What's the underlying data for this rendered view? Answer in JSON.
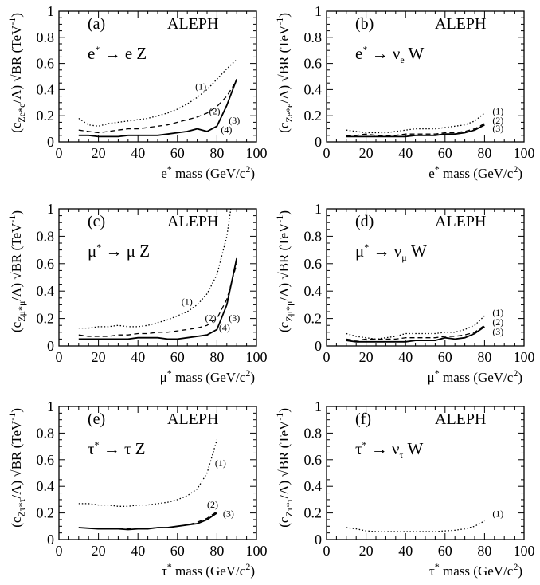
{
  "chart_data": [
    {
      "type": "line",
      "panel_label": "(a)",
      "experiment": "ALEPH",
      "process": {
        "particle": "e",
        "arrow": "→",
        "products": "e Z"
      },
      "xlabel": {
        "pre": "e",
        "post": " mass (GeV/c",
        "post2": ")"
      },
      "ylabel": {
        "c": "(c",
        "sub": "Ze*e",
        "rest": "/Λ) √BR (TeV",
        "sup": "-1",
        "end": ")"
      },
      "xlim": [
        0,
        100
      ],
      "ylim": [
        0,
        1
      ],
      "xticks": [
        "0",
        "20",
        "40",
        "60",
        "80",
        "100"
      ],
      "yticks": [
        "0",
        "0.2",
        "0.4",
        "0.6",
        "0.8",
        "1"
      ],
      "series": [
        {
          "name": "(1)",
          "style": "dotted",
          "x": [
            10,
            15,
            20,
            25,
            30,
            35,
            40,
            45,
            50,
            55,
            60,
            65,
            70,
            75,
            80,
            85,
            90
          ],
          "y": [
            0.18,
            0.13,
            0.12,
            0.14,
            0.15,
            0.16,
            0.17,
            0.18,
            0.2,
            0.22,
            0.25,
            0.29,
            0.34,
            0.4,
            0.48,
            0.56,
            0.63
          ]
        },
        {
          "name": "(2)",
          "style": "dashed",
          "x": [
            10,
            15,
            20,
            25,
            30,
            35,
            40,
            45,
            50,
            55,
            60,
            65,
            70,
            75,
            80,
            85,
            90
          ],
          "y": [
            0.09,
            0.08,
            0.07,
            0.08,
            0.09,
            0.1,
            0.1,
            0.11,
            0.12,
            0.13,
            0.15,
            0.17,
            0.19,
            0.22,
            0.27,
            0.35,
            0.47
          ]
        },
        {
          "name": "(3)",
          "style": "solid",
          "x": [
            10,
            15,
            20,
            25,
            30,
            35,
            40,
            45,
            50,
            55,
            60,
            65,
            70,
            75,
            80,
            85,
            90
          ],
          "y": [
            0.05,
            0.05,
            0.04,
            0.04,
            0.04,
            0.05,
            0.05,
            0.05,
            0.05,
            0.06,
            0.07,
            0.08,
            0.1,
            0.08,
            0.12,
            0.28,
            0.48
          ]
        }
      ],
      "curve_labels": [
        {
          "text": "(1)",
          "x": 69,
          "y": 0.4
        },
        {
          "text": "(2)",
          "x": 76,
          "y": 0.21
        },
        {
          "text": "(3)",
          "x": 86,
          "y": 0.14
        },
        {
          "text": "(4)",
          "x": 82,
          "y": 0.07
        }
      ]
    },
    {
      "type": "line",
      "panel_label": "(b)",
      "experiment": "ALEPH",
      "process": {
        "particle": "e",
        "arrow": "→",
        "products": "ν",
        "psub": "e",
        "tail": " W"
      },
      "xlabel": {
        "pre": "e",
        "post": " mass (GeV/c",
        "post2": ")"
      },
      "ylabel": {
        "c": "(c",
        "sub": "Ze*e",
        "rest": "/Λ) √BR (TeV",
        "sup": "-1",
        "end": ")"
      },
      "xlim": [
        0,
        100
      ],
      "ylim": [
        0,
        1
      ],
      "xticks": [
        "0",
        "20",
        "40",
        "60",
        "80",
        "100"
      ],
      "yticks": [
        "0",
        "0.2",
        "0.4",
        "0.6",
        "0.8",
        "1"
      ],
      "series": [
        {
          "name": "(1)",
          "style": "dotted",
          "x": [
            10,
            15,
            20,
            25,
            30,
            35,
            40,
            45,
            50,
            55,
            60,
            65,
            70,
            75,
            80
          ],
          "y": [
            0.09,
            0.08,
            0.07,
            0.07,
            0.07,
            0.08,
            0.09,
            0.1,
            0.1,
            0.1,
            0.11,
            0.12,
            0.13,
            0.16,
            0.22
          ]
        },
        {
          "name": "(2)",
          "style": "dashed",
          "x": [
            10,
            15,
            20,
            25,
            30,
            35,
            40,
            45,
            50,
            55,
            60,
            65,
            70,
            75,
            80
          ],
          "y": [
            0.05,
            0.05,
            0.06,
            0.05,
            0.05,
            0.05,
            0.06,
            0.06,
            0.06,
            0.06,
            0.07,
            0.07,
            0.08,
            0.1,
            0.14
          ]
        },
        {
          "name": "(3)",
          "style": "solid",
          "x": [
            10,
            15,
            20,
            25,
            30,
            35,
            40,
            45,
            50,
            55,
            60,
            65,
            70,
            75,
            80
          ],
          "y": [
            0.04,
            0.04,
            0.04,
            0.04,
            0.04,
            0.04,
            0.04,
            0.05,
            0.05,
            0.05,
            0.06,
            0.06,
            0.07,
            0.09,
            0.13
          ]
        }
      ],
      "curve_labels": [
        {
          "text": "(1)",
          "x": 84,
          "y": 0.21
        },
        {
          "text": "(2)",
          "x": 84,
          "y": 0.14
        },
        {
          "text": "(3)",
          "x": 84,
          "y": 0.08
        }
      ]
    },
    {
      "type": "line",
      "panel_label": "(c)",
      "experiment": "ALEPH",
      "process": {
        "particle": "μ",
        "arrow": "→",
        "products": "μ Z"
      },
      "xlabel": {
        "pre": "μ",
        "post": " mass (GeV/c",
        "post2": ")"
      },
      "ylabel": {
        "c": "(c",
        "sub": "Zμ*μ",
        "rest": "/Λ) √BR (TeV",
        "sup": "-1",
        "end": ")"
      },
      "xlim": [
        0,
        100
      ],
      "ylim": [
        0,
        1
      ],
      "xticks": [
        "0",
        "20",
        "40",
        "60",
        "80",
        "100"
      ],
      "yticks": [
        "0",
        "0.2",
        "0.4",
        "0.6",
        "0.8",
        "1"
      ],
      "series": [
        {
          "name": "(1)",
          "style": "dotted",
          "x": [
            10,
            15,
            20,
            25,
            30,
            35,
            40,
            45,
            50,
            55,
            60,
            65,
            70,
            75,
            80,
            85,
            87
          ],
          "y": [
            0.13,
            0.13,
            0.14,
            0.14,
            0.15,
            0.14,
            0.14,
            0.15,
            0.17,
            0.19,
            0.22,
            0.25,
            0.3,
            0.38,
            0.52,
            0.8,
            1.0
          ]
        },
        {
          "name": "(2)",
          "style": "dashed",
          "x": [
            10,
            15,
            20,
            25,
            30,
            35,
            40,
            45,
            50,
            55,
            60,
            65,
            70,
            75,
            80,
            85,
            90
          ],
          "y": [
            0.08,
            0.07,
            0.07,
            0.07,
            0.08,
            0.08,
            0.09,
            0.09,
            0.1,
            0.1,
            0.11,
            0.12,
            0.13,
            0.15,
            0.2,
            0.34,
            0.6
          ]
        },
        {
          "name": "(3)",
          "style": "solid",
          "x": [
            10,
            15,
            20,
            25,
            30,
            35,
            40,
            45,
            50,
            55,
            60,
            65,
            70,
            75,
            80,
            85,
            90
          ],
          "y": [
            0.05,
            0.05,
            0.05,
            0.05,
            0.05,
            0.05,
            0.06,
            0.06,
            0.06,
            0.05,
            0.05,
            0.06,
            0.07,
            0.08,
            0.12,
            0.3,
            0.64
          ]
        }
      ],
      "curve_labels": [
        {
          "text": "(1)",
          "x": 62,
          "y": 0.3
        },
        {
          "text": "(2)",
          "x": 74,
          "y": 0.18
        },
        {
          "text": "(3)",
          "x": 86,
          "y": 0.18
        },
        {
          "text": "(4)",
          "x": 81,
          "y": 0.11
        }
      ]
    },
    {
      "type": "line",
      "panel_label": "(d)",
      "experiment": "ALEPH",
      "process": {
        "particle": "μ",
        "arrow": "→",
        "products": "ν",
        "psub": "μ",
        "tail": " W"
      },
      "xlabel": {
        "pre": "μ",
        "post": " mass (GeV/c",
        "post2": ")"
      },
      "ylabel": {
        "c": "(c",
        "sub": "Zμ*μ",
        "rest": "/Λ) √BR (TeV",
        "sup": "-1",
        "end": ")"
      },
      "xlim": [
        0,
        100
      ],
      "ylim": [
        0,
        1
      ],
      "xticks": [
        "0",
        "20",
        "40",
        "60",
        "80",
        "100"
      ],
      "yticks": [
        "0",
        "0.2",
        "0.4",
        "0.6",
        "0.8",
        "1"
      ],
      "series": [
        {
          "name": "(1)",
          "style": "dotted",
          "x": [
            10,
            15,
            20,
            25,
            30,
            35,
            40,
            45,
            50,
            55,
            60,
            65,
            70,
            75,
            80
          ],
          "y": [
            0.09,
            0.07,
            0.06,
            0.05,
            0.06,
            0.07,
            0.09,
            0.09,
            0.09,
            0.09,
            0.1,
            0.1,
            0.12,
            0.15,
            0.22
          ]
        },
        {
          "name": "(2)",
          "style": "dashed",
          "x": [
            10,
            15,
            20,
            25,
            30,
            35,
            40,
            45,
            50,
            55,
            60,
            65,
            70,
            75,
            80
          ],
          "y": [
            0.05,
            0.04,
            0.05,
            0.05,
            0.05,
            0.05,
            0.06,
            0.06,
            0.06,
            0.06,
            0.07,
            0.07,
            0.08,
            0.1,
            0.15
          ]
        },
        {
          "name": "(3)",
          "style": "solid",
          "x": [
            10,
            15,
            20,
            25,
            30,
            35,
            40,
            45,
            50,
            55,
            60,
            65,
            70,
            75,
            80
          ],
          "y": [
            0.04,
            0.03,
            0.03,
            0.03,
            0.03,
            0.03,
            0.03,
            0.04,
            0.04,
            0.04,
            0.06,
            0.05,
            0.06,
            0.09,
            0.14
          ]
        }
      ],
      "curve_labels": [
        {
          "text": "(1)",
          "x": 84,
          "y": 0.22
        },
        {
          "text": "(2)",
          "x": 84,
          "y": 0.15
        },
        {
          "text": "(3)",
          "x": 84,
          "y": 0.08
        }
      ]
    },
    {
      "type": "line",
      "panel_label": "(e)",
      "experiment": "ALEPH",
      "process": {
        "particle": "τ",
        "arrow": "→",
        "products": "τ Z"
      },
      "xlabel": {
        "pre": "τ",
        "post": " mass (GeV/c",
        "post2": ")"
      },
      "ylabel": {
        "c": "(c",
        "sub": "Zτ*τ",
        "rest": "/Λ) √BR (TeV",
        "sup": "-1",
        "end": ")"
      },
      "xlim": [
        0,
        100
      ],
      "ylim": [
        0,
        1
      ],
      "xticks": [
        "0",
        "20",
        "40",
        "60",
        "80",
        "100"
      ],
      "yticks": [
        "0",
        "0.2",
        "0.4",
        "0.6",
        "0.8",
        "1"
      ],
      "series": [
        {
          "name": "(1)",
          "style": "dotted",
          "x": [
            10,
            15,
            20,
            25,
            30,
            35,
            40,
            45,
            50,
            55,
            60,
            65,
            70,
            75,
            80
          ],
          "y": [
            0.27,
            0.27,
            0.26,
            0.26,
            0.25,
            0.25,
            0.26,
            0.26,
            0.27,
            0.28,
            0.3,
            0.33,
            0.38,
            0.5,
            0.75
          ]
        },
        {
          "name": "(2)",
          "style": "dashed",
          "x": [
            10,
            15,
            20,
            25,
            30,
            35,
            40,
            45,
            50,
            55,
            60,
            65,
            70,
            75,
            80
          ],
          "y": [
            0.09,
            0.085,
            0.08,
            0.08,
            0.08,
            0.08,
            0.08,
            0.085,
            0.09,
            0.09,
            0.1,
            0.11,
            0.13,
            0.16,
            0.21
          ]
        },
        {
          "name": "(3)",
          "style": "solid",
          "x": [
            10,
            15,
            20,
            25,
            30,
            35,
            40,
            45,
            50,
            55,
            60,
            65,
            70,
            75,
            80
          ],
          "y": [
            0.09,
            0.085,
            0.08,
            0.08,
            0.08,
            0.075,
            0.08,
            0.08,
            0.09,
            0.09,
            0.1,
            0.11,
            0.12,
            0.15,
            0.2
          ]
        }
      ],
      "curve_labels": [
        {
          "text": "(1)",
          "x": 79,
          "y": 0.55
        },
        {
          "text": "(2)",
          "x": 75,
          "y": 0.24
        },
        {
          "text": "(3)",
          "x": 83,
          "y": 0.17
        }
      ]
    },
    {
      "type": "line",
      "panel_label": "(f)",
      "experiment": "ALEPH",
      "process": {
        "particle": "τ",
        "arrow": "→",
        "products": "ν",
        "psub": "τ",
        "tail": " W"
      },
      "xlabel": {
        "pre": "τ",
        "post": " mass (GeV/c",
        "post2": ")"
      },
      "ylabel": {
        "c": "(c",
        "sub": "Zτ*τ",
        "rest": "/Λ) √BR (TeV",
        "sup": "-1",
        "end": ")"
      },
      "xlim": [
        0,
        100
      ],
      "ylim": [
        0,
        1
      ],
      "xticks": [
        "0",
        "20",
        "40",
        "60",
        "80",
        "100"
      ],
      "yticks": [
        "0",
        "0.2",
        "0.4",
        "0.6",
        "0.8",
        "1"
      ],
      "series": [
        {
          "name": "(1)",
          "style": "dotted",
          "x": [
            10,
            15,
            20,
            25,
            30,
            35,
            40,
            45,
            50,
            55,
            60,
            65,
            70,
            75,
            80
          ],
          "y": [
            0.09,
            0.08,
            0.065,
            0.06,
            0.06,
            0.06,
            0.06,
            0.06,
            0.06,
            0.06,
            0.065,
            0.07,
            0.08,
            0.1,
            0.14
          ]
        }
      ],
      "curve_labels": [
        {
          "text": "(1)",
          "x": 84,
          "y": 0.17
        }
      ]
    }
  ]
}
